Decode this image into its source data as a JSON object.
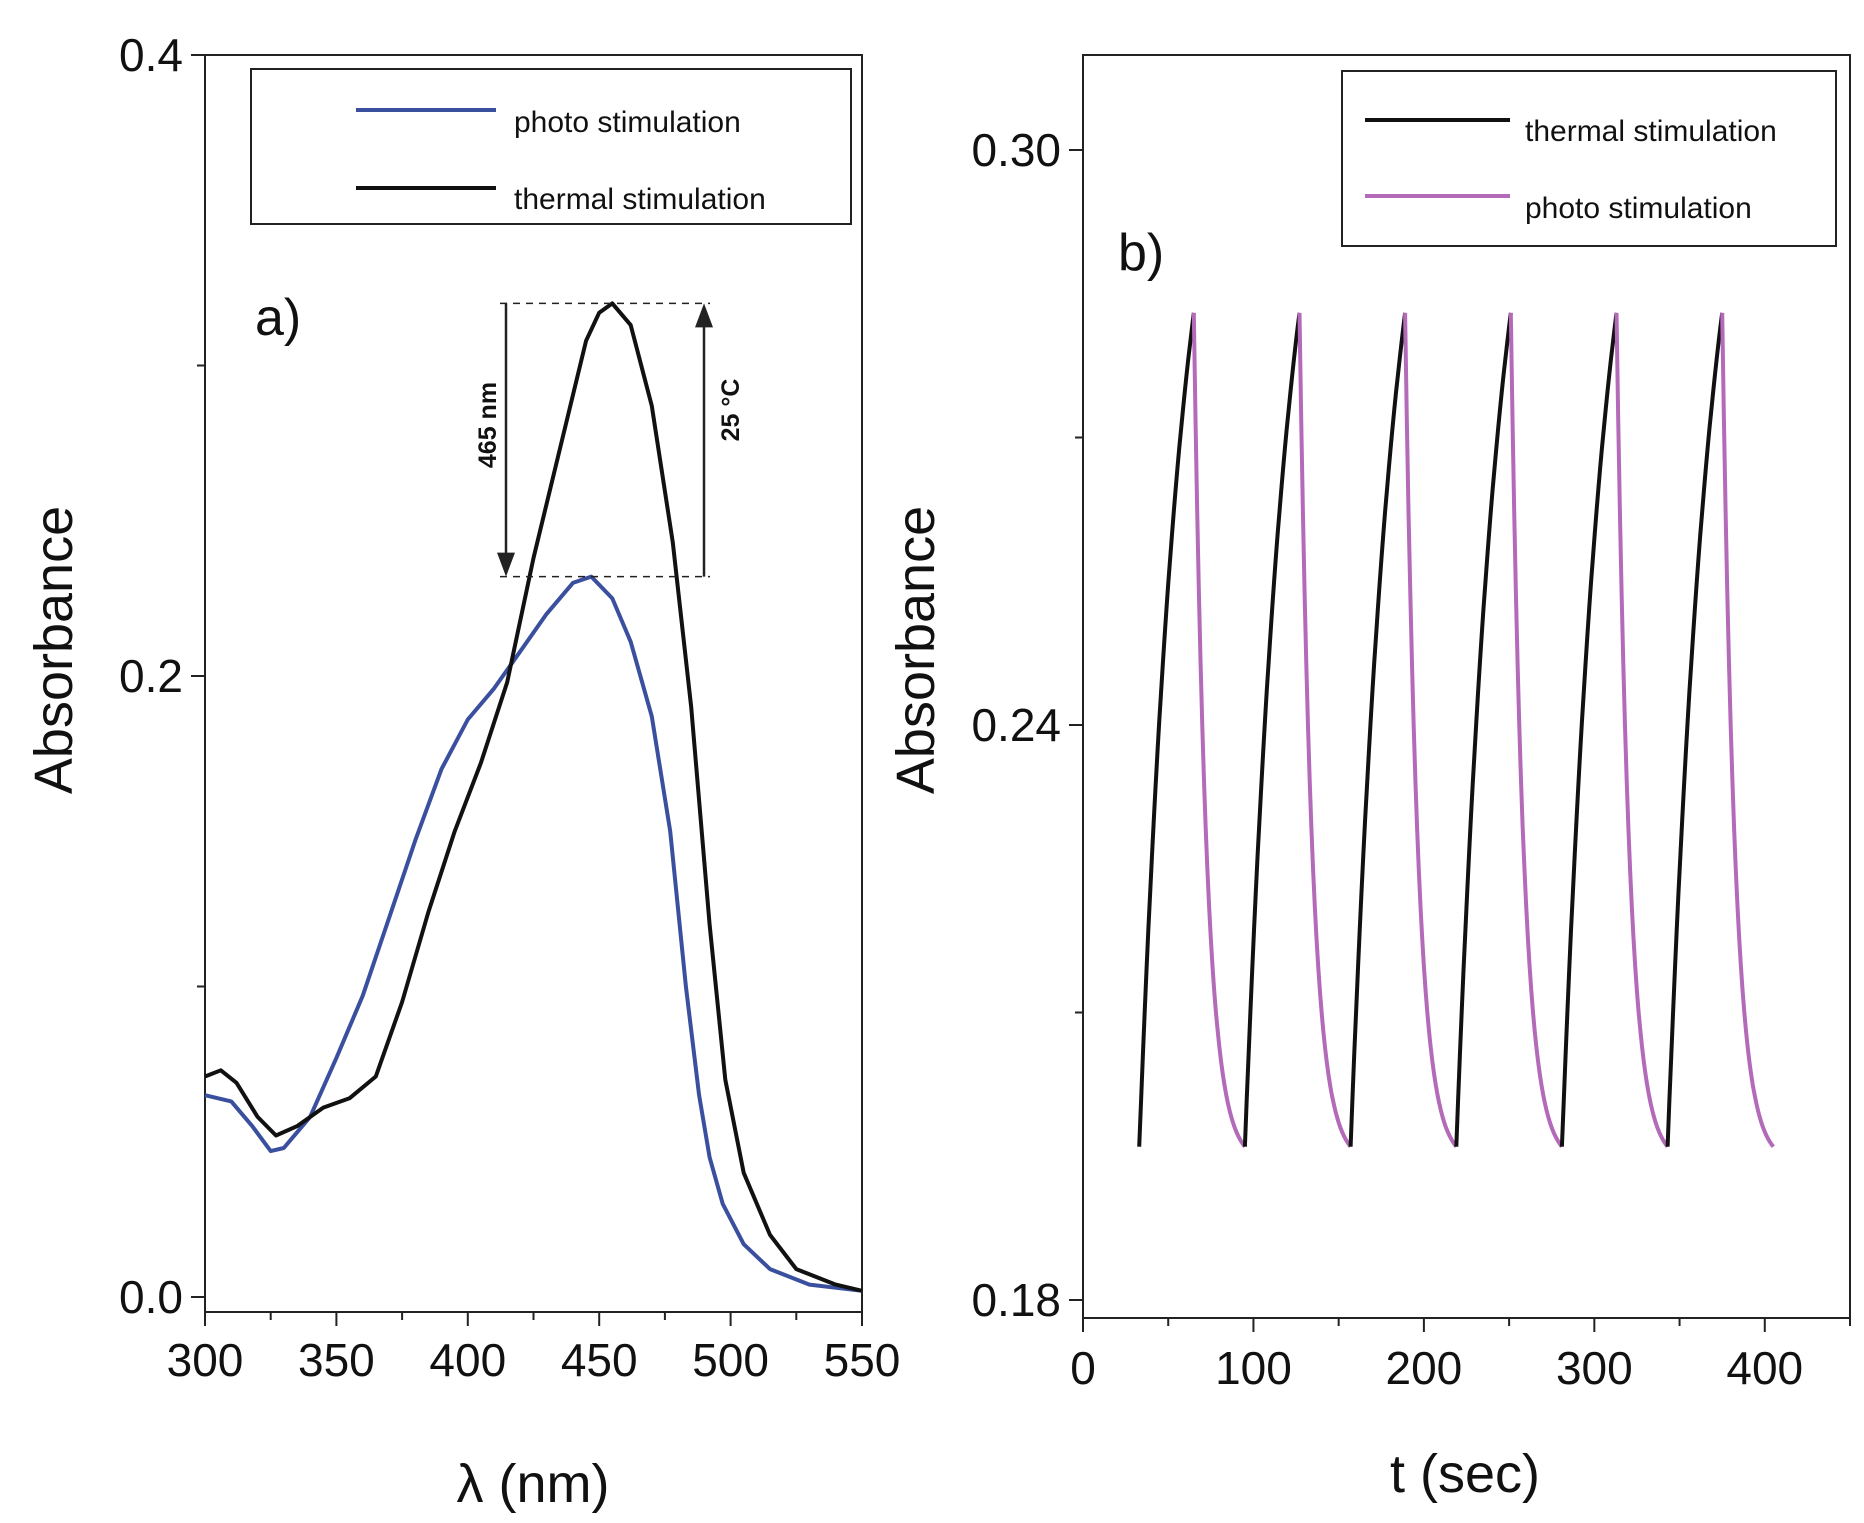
{
  "chart_data": [
    {
      "type": "line",
      "panel_label": "a)",
      "xlabel": "λ (nm)",
      "ylabel": "Absorbance",
      "xlim": [
        300,
        550
      ],
      "ylim": [
        0.0,
        0.4
      ],
      "x_ticks": [
        "300",
        "350",
        "400",
        "450",
        "500",
        "550"
      ],
      "y_ticks": [
        "0.0",
        "0.2",
        "0.4"
      ],
      "legend_position": "top-right",
      "annotations": [
        {
          "text": "465 nm",
          "direction": "down",
          "from_y": 0.32,
          "to_y": 0.232
        },
        {
          "text": "25 °C",
          "direction": "up",
          "from_y": 0.232,
          "to_y": 0.32
        }
      ],
      "series": [
        {
          "name": "photo stimulation",
          "color": "#3a4f9e",
          "points": [
            [
              300,
              0.065
            ],
            [
              310,
              0.063
            ],
            [
              318,
              0.055
            ],
            [
              325,
              0.047
            ],
            [
              330,
              0.048
            ],
            [
              340,
              0.058
            ],
            [
              350,
              0.077
            ],
            [
              360,
              0.097
            ],
            [
              370,
              0.122
            ],
            [
              380,
              0.147
            ],
            [
              390,
              0.17
            ],
            [
              400,
              0.186
            ],
            [
              410,
              0.196
            ],
            [
              420,
              0.208
            ],
            [
              430,
              0.22
            ],
            [
              440,
              0.23
            ],
            [
              447,
              0.232
            ],
            [
              455,
              0.225
            ],
            [
              462,
              0.211
            ],
            [
              470,
              0.187
            ],
            [
              477,
              0.15
            ],
            [
              483,
              0.1
            ],
            [
              488,
              0.065
            ],
            [
              492,
              0.045
            ],
            [
              497,
              0.03
            ],
            [
              505,
              0.017
            ],
            [
              515,
              0.009
            ],
            [
              530,
              0.004
            ],
            [
              550,
              0.002
            ]
          ]
        },
        {
          "name": "thermal stimulation",
          "color": "#111111",
          "points": [
            [
              300,
              0.071
            ],
            [
              306,
              0.073
            ],
            [
              312,
              0.069
            ],
            [
              320,
              0.058
            ],
            [
              327,
              0.052
            ],
            [
              335,
              0.055
            ],
            [
              345,
              0.061
            ],
            [
              355,
              0.064
            ],
            [
              365,
              0.071
            ],
            [
              375,
              0.095
            ],
            [
              385,
              0.124
            ],
            [
              395,
              0.15
            ],
            [
              405,
              0.172
            ],
            [
              415,
              0.198
            ],
            [
              425,
              0.238
            ],
            [
              435,
              0.273
            ],
            [
              445,
              0.308
            ],
            [
              450,
              0.317
            ],
            [
              455,
              0.32
            ],
            [
              462,
              0.313
            ],
            [
              470,
              0.287
            ],
            [
              478,
              0.243
            ],
            [
              485,
              0.19
            ],
            [
              492,
              0.12
            ],
            [
              498,
              0.07
            ],
            [
              505,
              0.04
            ],
            [
              515,
              0.02
            ],
            [
              525,
              0.009
            ],
            [
              540,
              0.004
            ],
            [
              550,
              0.002
            ]
          ]
        }
      ]
    },
    {
      "type": "line",
      "panel_label": "b)",
      "xlabel": "t (sec)",
      "ylabel": "Absorbance",
      "xlim": [
        0,
        450
      ],
      "ylim": [
        0.18,
        0.31
      ],
      "x_ticks": [
        "0",
        "100",
        "200",
        "300",
        "400"
      ],
      "y_ticks": [
        "0.18",
        "0.24",
        "0.30"
      ],
      "legend_position": "top-right",
      "cycle": {
        "starts": [
          33,
          95,
          157,
          219,
          281,
          343
        ],
        "rise_duration": 32,
        "decay_duration": 30,
        "min": 0.196,
        "max": 0.283
      },
      "series": [
        {
          "name": "thermal stimulation",
          "color": "#111111"
        },
        {
          "name": "photo stimulation",
          "color": "#b36ab8"
        }
      ]
    }
  ]
}
